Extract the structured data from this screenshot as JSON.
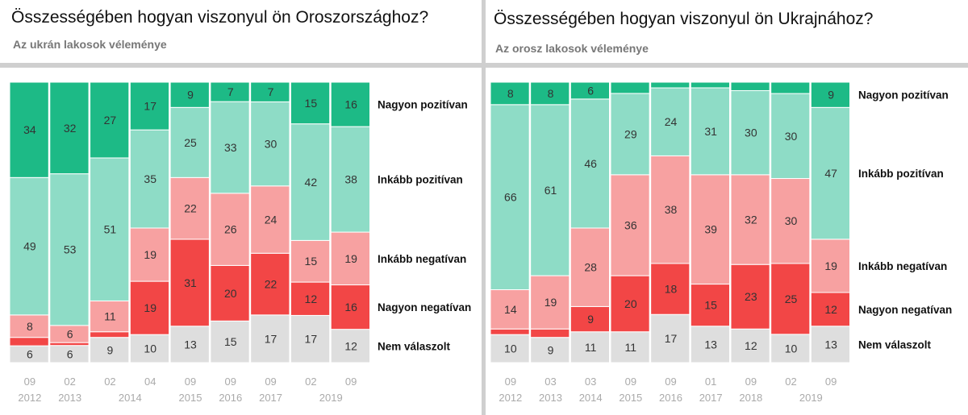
{
  "colors": {
    "nagyon_pozitivan": "#1dba86",
    "inkabb_pozitivan": "#8edcc6",
    "inkabb_negativan": "#f7a1a1",
    "nagyon_negativan": "#f24646",
    "nem_valaszolt": "#dedede"
  },
  "chart_data": [
    {
      "type": "bar",
      "stacked": true,
      "title": "Összességében hogyan viszonyul ön Oroszországhoz?",
      "subtitle": "Az ukrán lakosok véleménye",
      "ylim": [
        0,
        100
      ],
      "legend_position": "right",
      "categories": [
        [
          "09",
          "2012"
        ],
        [
          "02",
          "2013"
        ],
        [
          "02",
          ""
        ],
        [
          "04",
          "2014"
        ],
        [
          "09",
          "2015"
        ],
        [
          "09",
          "2016"
        ],
        [
          "09",
          "2017"
        ],
        [
          "02",
          ""
        ],
        [
          "09",
          "2019"
        ]
      ],
      "series": [
        {
          "name": "Nagyon pozitívan",
          "values": [
            34,
            32,
            27,
            17,
            9,
            7,
            7,
            15,
            16
          ],
          "labels": [
            "34",
            "32",
            "27",
            "17",
            "9",
            "7",
            "7",
            "15",
            "16"
          ]
        },
        {
          "name": "Inkább pozitívan",
          "values": [
            49,
            53,
            51,
            35,
            25,
            33,
            30,
            42,
            38
          ],
          "labels": [
            "49",
            "53",
            "51",
            "35",
            "25",
            "33",
            "30",
            "42",
            "38"
          ]
        },
        {
          "name": "Inkább negatívan",
          "values": [
            8,
            6,
            11,
            19,
            22,
            26,
            24,
            15,
            19
          ],
          "labels": [
            "8",
            "6",
            "11",
            "19",
            "22",
            "26",
            "24",
            "15",
            "19"
          ]
        },
        {
          "name": "Nagyon negatívan",
          "values": [
            3,
            1,
            2,
            19,
            31,
            20,
            22,
            12,
            16
          ],
          "labels": [
            "",
            "",
            "",
            "19",
            "31",
            "20",
            "22",
            "12",
            "16"
          ]
        },
        {
          "name": "Nem válaszolt",
          "values": [
            6,
            6,
            9,
            10,
            13,
            15,
            17,
            17,
            12
          ],
          "labels": [
            "6",
            "6",
            "9",
            "10",
            "13",
            "15",
            "17",
            "17",
            "12"
          ]
        }
      ]
    },
    {
      "type": "bar",
      "stacked": true,
      "title": "Összességében hogyan viszonyul ön Ukrajnához?",
      "subtitle": "Az orosz lakosok véleménye",
      "ylim": [
        0,
        100
      ],
      "legend_position": "right",
      "categories": [
        [
          "09",
          "2012"
        ],
        [
          "03",
          "2013"
        ],
        [
          "03",
          "2014"
        ],
        [
          "09",
          "2015"
        ],
        [
          "09",
          "2016"
        ],
        [
          "01",
          "2017"
        ],
        [
          "09",
          "2018"
        ],
        [
          "02",
          ""
        ],
        [
          "09",
          "2019"
        ]
      ],
      "series": [
        {
          "name": "Nagyon pozitívan",
          "values": [
            8,
            8,
            6,
            4,
            2,
            2,
            3,
            4,
            9
          ],
          "labels": [
            "8",
            "8",
            "6",
            "",
            "",
            "",
            "",
            "",
            "9"
          ]
        },
        {
          "name": "Inkább pozitívan",
          "values": [
            66,
            61,
            46,
            29,
            24,
            31,
            30,
            30,
            47
          ],
          "labels": [
            "66",
            "61",
            "46",
            "29",
            "24",
            "31",
            "30",
            "30",
            "47"
          ]
        },
        {
          "name": "Inkább negatívan",
          "values": [
            14,
            19,
            28,
            36,
            38,
            39,
            32,
            30,
            19
          ],
          "labels": [
            "14",
            "19",
            "28",
            "36",
            "38",
            "39",
            "32",
            "30",
            "19"
          ]
        },
        {
          "name": "Nagyon negatívan",
          "values": [
            2,
            3,
            9,
            20,
            18,
            15,
            23,
            25,
            12
          ],
          "labels": [
            "",
            "",
            "9",
            "20",
            "18",
            "15",
            "23",
            "25",
            "12"
          ]
        },
        {
          "name": "Nem válaszolt",
          "values": [
            10,
            9,
            11,
            11,
            17,
            13,
            12,
            10,
            13
          ],
          "labels": [
            "10",
            "9",
            "11",
            "11",
            "17",
            "13",
            "12",
            "10",
            "13"
          ]
        }
      ]
    }
  ]
}
